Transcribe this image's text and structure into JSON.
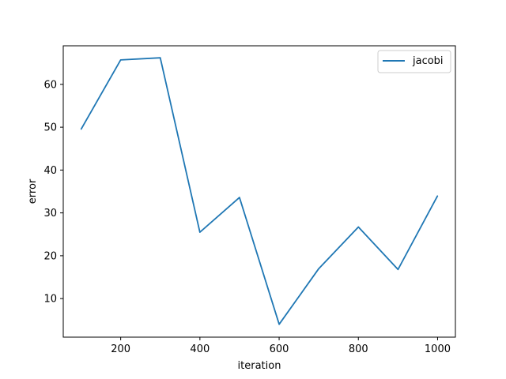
{
  "chart_data": {
    "type": "line",
    "title": "",
    "xlabel": "iteration",
    "ylabel": "error",
    "xlim": [
      55,
      1045
    ],
    "ylim": [
      1,
      69
    ],
    "xticks": [
      200,
      400,
      600,
      800,
      1000
    ],
    "yticks": [
      10,
      20,
      30,
      40,
      50,
      60
    ],
    "grid": false,
    "legend_position": "top-right",
    "series": [
      {
        "name": "jacobi",
        "color": "#1f77b4",
        "x": [
          100,
          200,
          300,
          400,
          500,
          600,
          700,
          800,
          900,
          1000
        ],
        "y": [
          49.5,
          65.7,
          66.2,
          25.5,
          33.6,
          4.0,
          17.0,
          26.7,
          16.8,
          34.0
        ]
      }
    ]
  }
}
